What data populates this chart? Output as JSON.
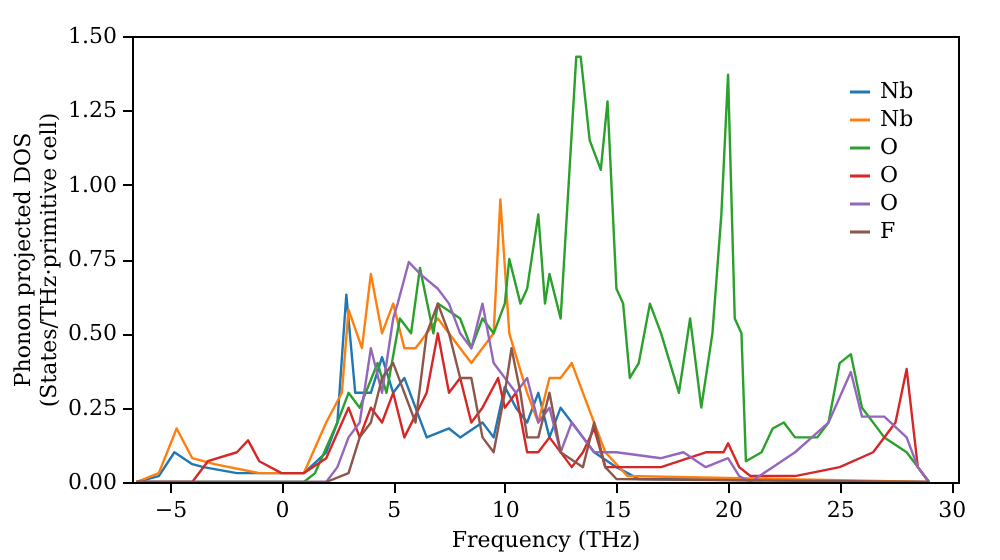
{
  "chart_data": {
    "type": "line",
    "xlabel": "Frequency (THz)",
    "ylabel": "Phonon projected DOS\n(States/THz·primitive cell)",
    "xlim": [
      -6.7,
      30.3
    ],
    "xticks": [
      -5,
      0,
      5,
      10,
      15,
      20,
      25,
      30
    ],
    "ylim": [
      0,
      1.5
    ],
    "yticks": [
      {
        "value": 0,
        "label": "0.00"
      },
      {
        "value": 0.25,
        "label": "0.25"
      },
      {
        "value": 0.5,
        "label": "0.50"
      },
      {
        "value": 0.75,
        "label": "0.75"
      },
      {
        "value": 1,
        "label": "1.00"
      },
      {
        "value": 1.25,
        "label": "1.25"
      },
      {
        "value": 1.5,
        "label": "1.50"
      }
    ],
    "grid": false,
    "legend": "top right",
    "marker": "none",
    "line_style": "solid",
    "series": [
      {
        "name": "Nb",
        "color": "#1f77b4",
        "x": [
          -6.5,
          -5.5,
          -4.8,
          -4,
          -3.5,
          -2,
          1,
          2,
          2.5,
          2.9,
          3.3,
          4,
          4.5,
          5,
          5.5,
          6,
          6.5,
          7.5,
          8,
          9,
          9.5,
          10,
          10.5,
          11,
          11.5,
          12,
          12.5,
          13.5,
          14,
          15,
          16,
          29
        ],
        "values": [
          0,
          0.02,
          0.1,
          0.06,
          0.05,
          0.03,
          0.03,
          0.1,
          0.2,
          0.63,
          0.3,
          0.3,
          0.42,
          0.3,
          0.35,
          0.25,
          0.15,
          0.18,
          0.15,
          0.2,
          0.15,
          0.32,
          0.25,
          0.2,
          0.3,
          0.15,
          0.25,
          0.15,
          0.1,
          0.05,
          0.01,
          0
        ]
      },
      {
        "name": "Nb",
        "color": "#ff7f0e",
        "x": [
          -6.5,
          -5.5,
          -4.7,
          -4,
          -3,
          -1,
          1,
          2,
          2.7,
          3,
          3.6,
          4,
          4.5,
          5,
          5.5,
          6,
          7,
          8,
          8.5,
          9.5,
          9.8,
          10.2,
          11,
          11.5,
          12,
          12.5,
          13,
          13.5,
          14.5,
          15.5,
          29
        ],
        "values": [
          0,
          0.03,
          0.18,
          0.08,
          0.06,
          0.03,
          0.03,
          0.2,
          0.3,
          0.58,
          0.45,
          0.7,
          0.5,
          0.6,
          0.45,
          0.45,
          0.55,
          0.45,
          0.4,
          0.5,
          0.95,
          0.5,
          0.3,
          0.2,
          0.35,
          0.35,
          0.4,
          0.3,
          0.1,
          0.02,
          0
        ]
      },
      {
        "name": "O",
        "color": "#2ca02c",
        "x": [
          -6.5,
          1,
          1.5,
          2.5,
          3,
          3.5,
          4.3,
          4.7,
          5.3,
          5.8,
          6.2,
          6.8,
          7,
          8,
          8.5,
          9,
          9.5,
          10,
          10.2,
          10.7,
          11,
          11.5,
          11.8,
          12,
          12.5,
          12.7,
          13.2,
          13.4,
          13.8,
          14.3,
          14.6,
          15,
          15.3,
          15.6,
          16,
          16.5,
          17,
          17.8,
          18.3,
          18.8,
          19.3,
          19.7,
          20,
          20.3,
          20.6,
          20.8,
          21.5,
          22,
          22.5,
          23,
          24,
          24.5,
          25,
          25.5,
          26,
          27,
          28,
          28.5,
          29
        ],
        "values": [
          0,
          0,
          0.03,
          0.2,
          0.3,
          0.25,
          0.4,
          0.3,
          0.55,
          0.5,
          0.72,
          0.5,
          0.6,
          0.55,
          0.45,
          0.55,
          0.5,
          0.6,
          0.75,
          0.6,
          0.65,
          0.9,
          0.6,
          0.7,
          0.55,
          0.8,
          1.43,
          1.43,
          1.15,
          1.05,
          1.28,
          0.65,
          0.6,
          0.35,
          0.4,
          0.6,
          0.5,
          0.3,
          0.55,
          0.25,
          0.5,
          0.9,
          1.37,
          0.55,
          0.5,
          0.07,
          0.1,
          0.18,
          0.2,
          0.15,
          0.15,
          0.2,
          0.4,
          0.43,
          0.25,
          0.15,
          0.1,
          0.05,
          0
        ]
      },
      {
        "name": "O",
        "color": "#d62728",
        "x": [
          -6.5,
          -4,
          -3.3,
          -2,
          -1.5,
          -1,
          0,
          1,
          2,
          3,
          3.5,
          4,
          4.5,
          5,
          5.5,
          6.5,
          7,
          7.5,
          8,
          8.5,
          9,
          9.7,
          10,
          10.5,
          11,
          11.5,
          12,
          13,
          13.5,
          14,
          14.5,
          15.5,
          17,
          19,
          19.8,
          20,
          20.5,
          21,
          23,
          25,
          26.5,
          27.5,
          28,
          28.5,
          29
        ],
        "values": [
          0,
          0,
          0.07,
          0.1,
          0.14,
          0.07,
          0.03,
          0.03,
          0.08,
          0.25,
          0.15,
          0.25,
          0.2,
          0.3,
          0.15,
          0.3,
          0.5,
          0.3,
          0.35,
          0.2,
          0.25,
          0.35,
          0.25,
          0.3,
          0.1,
          0.1,
          0.15,
          0.05,
          0.1,
          0.18,
          0.05,
          0.05,
          0.05,
          0.1,
          0.1,
          0.13,
          0.05,
          0.02,
          0.02,
          0.05,
          0.1,
          0.2,
          0.38,
          0.05,
          0
        ]
      },
      {
        "name": "O",
        "color": "#9467bd",
        "x": [
          -6.5,
          2,
          2.5,
          3,
          3.5,
          4,
          4.5,
          5,
          5.2,
          5.7,
          6.2,
          7,
          7.5,
          8,
          8.5,
          9,
          9.5,
          10.5,
          11,
          11.5,
          12,
          12.5,
          13,
          14,
          15,
          17,
          18,
          19,
          20,
          20.5,
          21,
          22,
          23,
          24.5,
          25.5,
          26,
          27,
          28,
          28.5,
          29
        ],
        "values": [
          0,
          0,
          0.05,
          0.15,
          0.2,
          0.45,
          0.3,
          0.55,
          0.6,
          0.74,
          0.7,
          0.65,
          0.6,
          0.5,
          0.45,
          0.6,
          0.4,
          0.3,
          0.35,
          0.2,
          0.25,
          0.1,
          0.2,
          0.1,
          0.1,
          0.08,
          0.1,
          0.05,
          0.08,
          0.02,
          0,
          0.05,
          0.1,
          0.2,
          0.37,
          0.22,
          0.22,
          0.15,
          0.05,
          0
        ]
      },
      {
        "name": "F",
        "color": "#8c564b",
        "x": [
          -6.5,
          2,
          3,
          3.5,
          4,
          4.5,
          5,
          5.5,
          6,
          6.5,
          7,
          7.5,
          8,
          8.5,
          9,
          9.5,
          10,
          10.3,
          10.7,
          11,
          11.5,
          12,
          12.5,
          13.5,
          14,
          14.5,
          15,
          29
        ],
        "values": [
          0,
          0,
          0.03,
          0.15,
          0.2,
          0.35,
          0.4,
          0.3,
          0.2,
          0.5,
          0.6,
          0.5,
          0.35,
          0.35,
          0.15,
          0.1,
          0.3,
          0.45,
          0.3,
          0.15,
          0.15,
          0.3,
          0.1,
          0.05,
          0.2,
          0.05,
          0.01,
          0
        ]
      }
    ]
  }
}
